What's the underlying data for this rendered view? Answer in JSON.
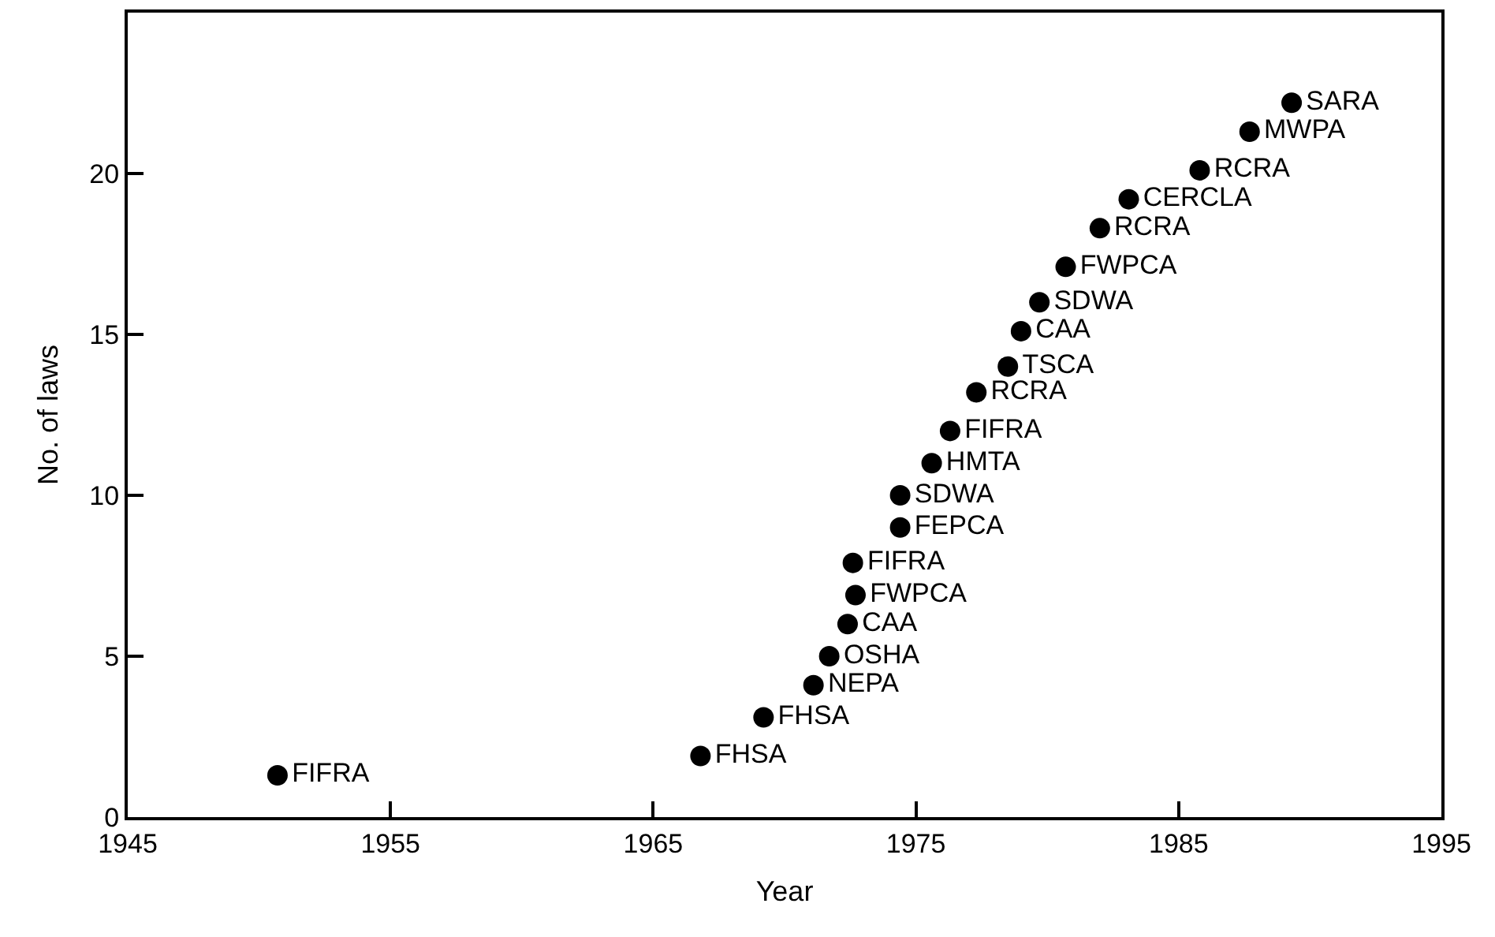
{
  "chart_data": {
    "type": "scatter",
    "xlabel": "Year",
    "ylabel": "No. of laws",
    "x": [
      1950.7,
      1966.8,
      1969.2,
      1971.1,
      1971.7,
      1972.4,
      1972.7,
      1972.6,
      1974.4,
      1974.4,
      1975.6,
      1976.3,
      1977.3,
      1978.5,
      1979.0,
      1979.7,
      1980.7,
      1982.0,
      1983.1,
      1985.8,
      1987.7,
      1989.3
    ],
    "values": [
      1.3,
      1.9,
      3.1,
      4.1,
      5.0,
      6.0,
      6.9,
      7.9,
      9.0,
      10.0,
      11.0,
      12.0,
      13.2,
      14.0,
      15.1,
      16.0,
      17.1,
      18.3,
      19.2,
      20.1,
      21.3,
      22.2
    ],
    "value_labels": [
      "FIFRA",
      "FHSA",
      "FHSA",
      "NEPA",
      "OSHA",
      "CAA",
      "FWPCA",
      "FIFRA",
      "FEPCA",
      "SDWA",
      "HMTA",
      "FIFRA",
      "RCRA",
      "TSCA",
      "CAA",
      "SDWA",
      "FWPCA",
      "RCRA",
      "CERCLA",
      "RCRA",
      "MWPA",
      "SARA"
    ],
    "color": "#000000",
    "marker": "circle",
    "xlim": [
      1945,
      1995
    ],
    "xticks": [
      1945,
      1955,
      1965,
      1975,
      1985,
      1995
    ],
    "ylim": [
      0,
      25
    ],
    "yticks": [
      0,
      5,
      10,
      15,
      20
    ]
  }
}
